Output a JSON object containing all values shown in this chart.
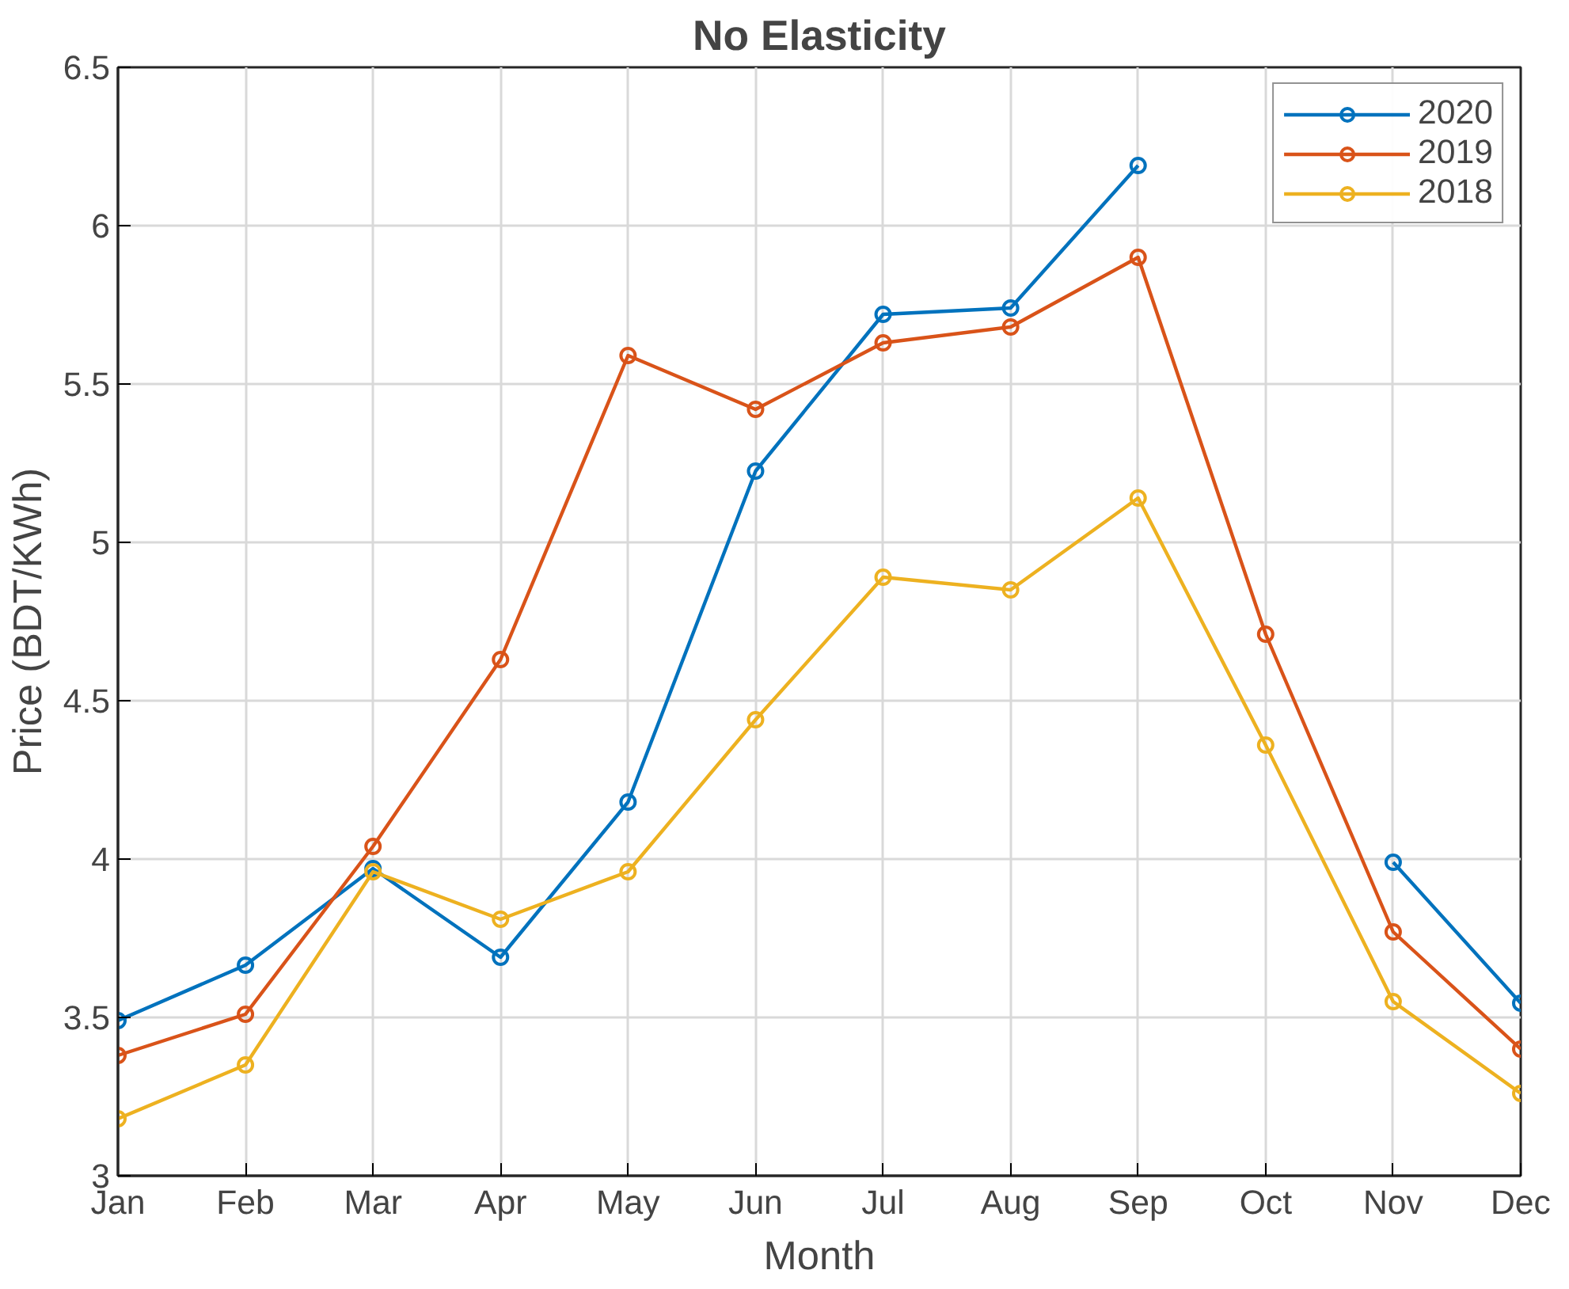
{
  "chart_data": {
    "type": "line",
    "title": "No Elasticity",
    "xlabel": "Month",
    "ylabel": "Price (BDT/KWh)",
    "categories": [
      "Jan",
      "Feb",
      "Mar",
      "Apr",
      "May",
      "Jun",
      "Jul",
      "Aug",
      "Sep",
      "Oct",
      "Nov",
      "Dec"
    ],
    "series": [
      {
        "name": "2020",
        "color": "#0072bd",
        "values": [
          3.49,
          3.665,
          3.97,
          3.69,
          4.18,
          5.225,
          5.72,
          5.74,
          6.19,
          null,
          3.99,
          3.545
        ]
      },
      {
        "name": "2019",
        "color": "#d95319",
        "values": [
          3.38,
          3.51,
          4.04,
          4.63,
          5.59,
          5.42,
          5.63,
          5.68,
          5.9,
          4.71,
          3.77,
          3.4
        ]
      },
      {
        "name": "2018",
        "color": "#edb120",
        "values": [
          3.18,
          3.35,
          3.96,
          3.81,
          3.96,
          4.44,
          4.89,
          4.85,
          5.14,
          4.36,
          3.55,
          3.26
        ]
      }
    ],
    "ylim": [
      3,
      6.5
    ],
    "yticks": [
      3,
      3.5,
      4,
      4.5,
      5,
      5.5,
      6,
      6.5
    ],
    "grid": true,
    "legend": "top right",
    "marker": "circle",
    "line_style": "solid"
  }
}
